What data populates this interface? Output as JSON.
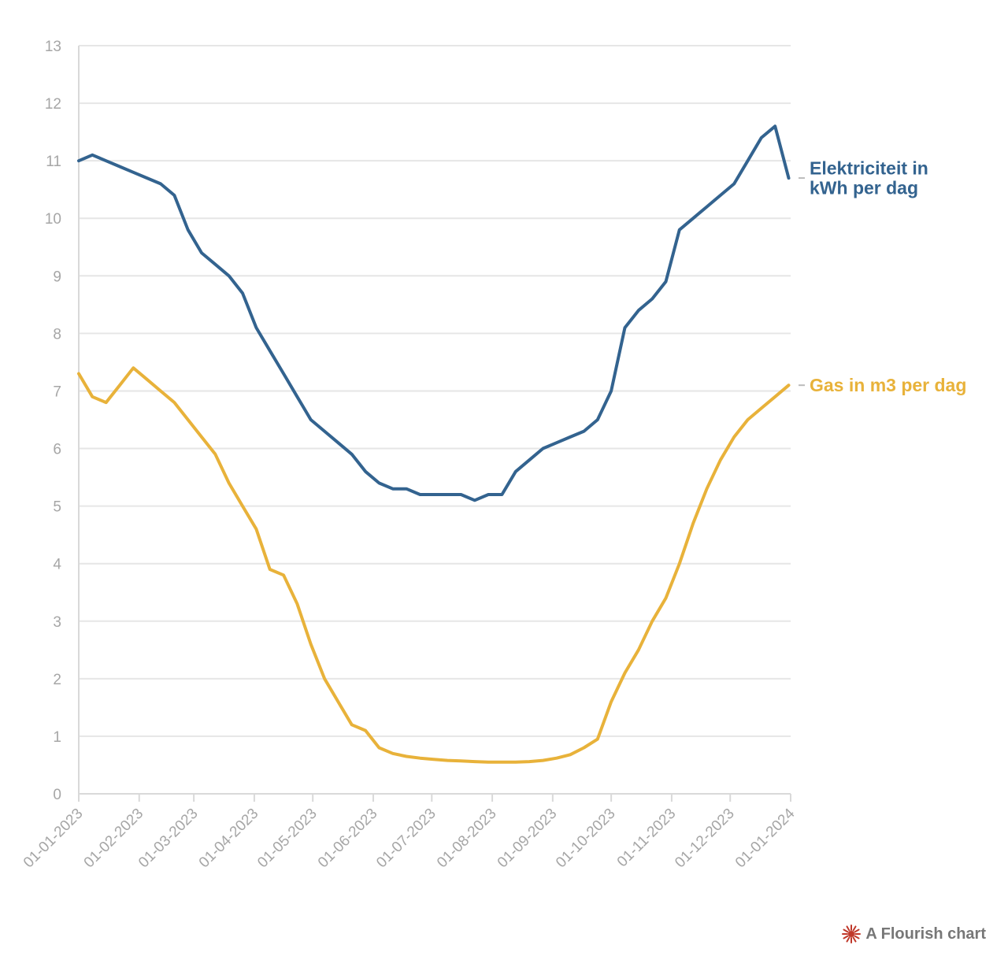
{
  "chart_data": {
    "type": "line",
    "title": "",
    "xlabel": "",
    "ylabel": "",
    "ylim": [
      0,
      13
    ],
    "y_ticks": [
      "0",
      "1",
      "2",
      "3",
      "4",
      "5",
      "6",
      "7",
      "8",
      "9",
      "10",
      "11",
      "12",
      "13"
    ],
    "x_ticks": [
      "01-01-2023",
      "01-02-2023",
      "01-03-2023",
      "01-04-2023",
      "01-05-2023",
      "01-06-2023",
      "01-07-2023",
      "01-08-2023",
      "01-09-2023",
      "01-10-2023",
      "01-11-2023",
      "01-12-2023",
      "01-01-2024"
    ],
    "grid": true,
    "legend": "direct labels at right end of lines",
    "series": [
      {
        "name": "Elektriciteit in kWh per dag",
        "color": "#33638f",
        "x": [
          "2023-01-01",
          "2023-01-08",
          "2023-01-15",
          "2023-01-22",
          "2023-01-29",
          "2023-02-05",
          "2023-02-12",
          "2023-02-19",
          "2023-02-26",
          "2023-03-05",
          "2023-03-12",
          "2023-03-19",
          "2023-03-26",
          "2023-04-02",
          "2023-04-09",
          "2023-04-16",
          "2023-04-23",
          "2023-04-30",
          "2023-05-07",
          "2023-05-14",
          "2023-05-21",
          "2023-05-28",
          "2023-06-04",
          "2023-06-11",
          "2023-06-18",
          "2023-06-25",
          "2023-07-02",
          "2023-07-09",
          "2023-07-16",
          "2023-07-23",
          "2023-07-30",
          "2023-08-06",
          "2023-08-13",
          "2023-08-20",
          "2023-08-27",
          "2023-09-03",
          "2023-09-10",
          "2023-09-17",
          "2023-09-24",
          "2023-10-01",
          "2023-10-08",
          "2023-10-15",
          "2023-10-22",
          "2023-10-29",
          "2023-11-05",
          "2023-11-12",
          "2023-11-19",
          "2023-11-26",
          "2023-12-03",
          "2023-12-10",
          "2023-12-17",
          "2023-12-24",
          "2023-12-31"
        ],
        "values": [
          11.0,
          11.1,
          11.0,
          10.9,
          10.8,
          10.7,
          10.6,
          10.4,
          9.8,
          9.4,
          9.2,
          9.0,
          8.7,
          8.1,
          7.7,
          7.3,
          6.9,
          6.5,
          6.3,
          6.1,
          5.9,
          5.6,
          5.4,
          5.3,
          5.3,
          5.2,
          5.2,
          5.2,
          5.2,
          5.1,
          5.2,
          5.2,
          5.6,
          5.8,
          6.0,
          6.1,
          6.2,
          6.3,
          6.5,
          7.0,
          8.1,
          8.4,
          8.6,
          8.9,
          9.8,
          10.0,
          10.2,
          10.4,
          10.6,
          11.0,
          11.4,
          11.6,
          10.7
        ]
      },
      {
        "name": "Gas in m3 per dag",
        "color": "#e8b23a",
        "x": [
          "2023-01-01",
          "2023-01-08",
          "2023-01-15",
          "2023-01-22",
          "2023-01-29",
          "2023-02-05",
          "2023-02-12",
          "2023-02-19",
          "2023-02-26",
          "2023-03-05",
          "2023-03-12",
          "2023-03-19",
          "2023-03-26",
          "2023-04-02",
          "2023-04-09",
          "2023-04-16",
          "2023-04-23",
          "2023-04-30",
          "2023-05-07",
          "2023-05-14",
          "2023-05-21",
          "2023-05-28",
          "2023-06-04",
          "2023-06-11",
          "2023-06-18",
          "2023-06-25",
          "2023-07-02",
          "2023-07-09",
          "2023-07-16",
          "2023-07-23",
          "2023-07-30",
          "2023-08-06",
          "2023-08-13",
          "2023-08-20",
          "2023-08-27",
          "2023-09-03",
          "2023-09-10",
          "2023-09-17",
          "2023-09-24",
          "2023-10-01",
          "2023-10-08",
          "2023-10-15",
          "2023-10-22",
          "2023-10-29",
          "2023-11-05",
          "2023-11-12",
          "2023-11-19",
          "2023-11-26",
          "2023-12-03",
          "2023-12-10",
          "2023-12-17",
          "2023-12-24",
          "2023-12-31"
        ],
        "values": [
          7.3,
          6.9,
          6.8,
          7.1,
          7.4,
          7.2,
          7.0,
          6.8,
          6.5,
          6.2,
          5.9,
          5.4,
          5.0,
          4.6,
          3.9,
          3.8,
          3.3,
          2.6,
          2.0,
          1.6,
          1.2,
          1.1,
          0.8,
          0.7,
          0.65,
          0.62,
          0.6,
          0.58,
          0.57,
          0.56,
          0.55,
          0.55,
          0.55,
          0.56,
          0.58,
          0.62,
          0.68,
          0.8,
          0.95,
          1.6,
          2.1,
          2.5,
          3.0,
          3.4,
          4.0,
          4.7,
          5.3,
          5.8,
          6.2,
          6.5,
          6.7,
          6.9,
          7.1
        ]
      }
    ]
  },
  "credit": {
    "text": "A Flourish chart",
    "icon": "flourish-star-icon",
    "icon_color": "#c0392b"
  }
}
